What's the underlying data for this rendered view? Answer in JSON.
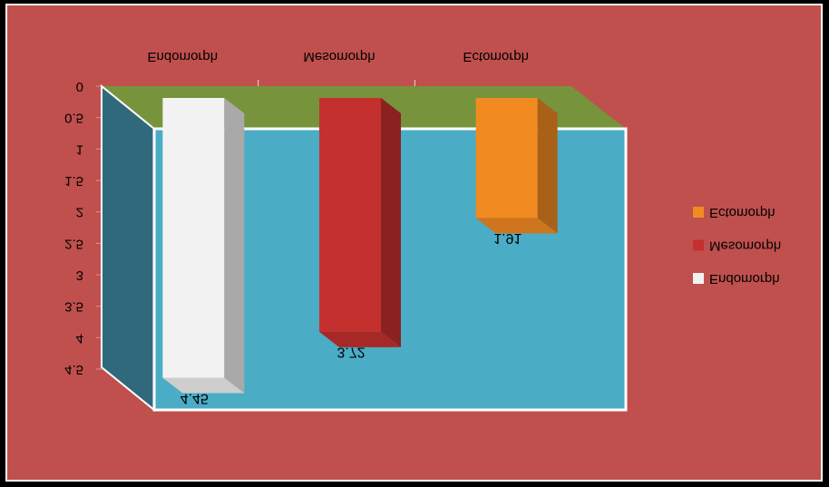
{
  "chart_data": {
    "type": "bar",
    "categories": [
      "Endomorph",
      "Mesomorph",
      "Ectomorph"
    ],
    "values": [
      4.45,
      3.72,
      1.91
    ],
    "colors": [
      "#f2f2f2",
      "#c4302e",
      "#f28a22"
    ],
    "ylim": [
      0,
      4.5
    ],
    "yticks": [
      0,
      0.5,
      1,
      1.5,
      2,
      2.5,
      3,
      3.5,
      4,
      4.5
    ],
    "inverted": true,
    "legend": "right"
  }
}
